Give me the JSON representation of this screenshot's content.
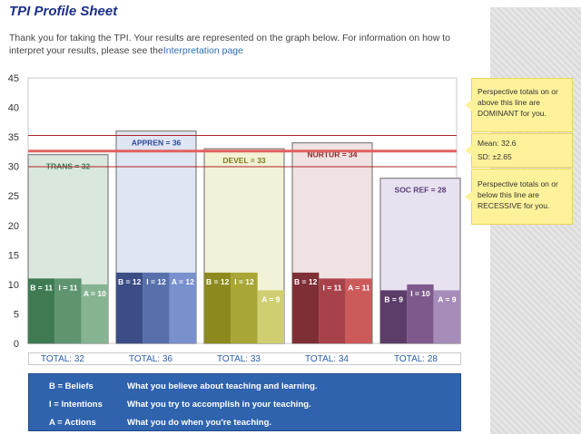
{
  "page": {
    "title": "TPI Profile Sheet",
    "intro": "Thank you for taking the TPI. Your results are represented on the graph below. For information on how to interpret your results, please see the",
    "link": "Interpretation page"
  },
  "notes": {
    "dominant": "Perspective totals on or above this line are DOMINANT for you.",
    "mean": "Mean: 32.6",
    "sd": "SD: ±2.65",
    "recessive": "Perspective totals on or below this line are RECESSIVE for you."
  },
  "chart_data": {
    "type": "bar",
    "ylim": [
      0,
      45
    ],
    "yticks": [
      0,
      5,
      10,
      15,
      20,
      25,
      30,
      35,
      40,
      45
    ],
    "mean": 32.6,
    "upper_line": 35.25,
    "lower_line": 29.95,
    "perspectives": [
      {
        "name": "TRANS",
        "label": "TRANS = 32",
        "total": 32,
        "beliefs": 11,
        "intentions": 11,
        "actions": 10,
        "b_label": "B = 11",
        "i_label": "I = 11",
        "a_label": "A = 10",
        "total_label": "TOTAL:  32",
        "fill": "#d9e7dc",
        "label_color": "#3c7a55",
        "dark": "#3f7a52",
        "mid": "#5e9470",
        "light": "#86b493"
      },
      {
        "name": "APPREN",
        "label": "APPREN = 36",
        "total": 36,
        "beliefs": 12,
        "intentions": 12,
        "actions": 12,
        "b_label": "B = 12",
        "i_label": "I = 12",
        "a_label": "A = 12",
        "total_label": "TOTAL:  36",
        "fill": "#dfe5f2",
        "label_color": "#2d4a9a",
        "dark": "#3c4d86",
        "mid": "#5770ac",
        "light": "#7890cc"
      },
      {
        "name": "DEVEL",
        "label": "DEVEL = 33",
        "total": 33,
        "beliefs": 12,
        "intentions": 12,
        "actions": 9,
        "b_label": "B = 12",
        "i_label": "I = 12",
        "a_label": "A = 9",
        "total_label": "TOTAL:  33",
        "fill": "#f2f2d6",
        "label_color": "#7f7a1c",
        "dark": "#8c8a1e",
        "mid": "#a7a636",
        "light": "#cfcf72"
      },
      {
        "name": "NURTUR",
        "label": "NURTUR = 34",
        "total": 34,
        "beliefs": 12,
        "intentions": 11,
        "actions": 11,
        "b_label": "B = 12",
        "i_label": "I = 11",
        "a_label": "A = 11",
        "total_label": "TOTAL:  34",
        "fill": "#f0e2e2",
        "label_color": "#8a2a2a",
        "dark": "#7e2e35",
        "mid": "#a8424a",
        "light": "#cd5a5a"
      },
      {
        "name": "SOC REF",
        "label": "SOC REF = 28",
        "total": 28,
        "beliefs": 9,
        "intentions": 10,
        "actions": 9,
        "b_label": "B = 9",
        "i_label": "I = 10",
        "a_label": "A = 9",
        "total_label": "TOTAL:  28",
        "fill": "#e8e2f0",
        "label_color": "#5a3c7a",
        "dark": "#5c3d6a",
        "mid": "#7e5a8c",
        "light": "#a68cb8"
      }
    ]
  },
  "legend": [
    {
      "key": "B = Beliefs",
      "desc": "What you believe about teaching and learning."
    },
    {
      "key": "I = Intentions",
      "desc": "What you try to accomplish in your teaching."
    },
    {
      "key": "A = Actions",
      "desc": "What you do when you're teaching."
    }
  ]
}
